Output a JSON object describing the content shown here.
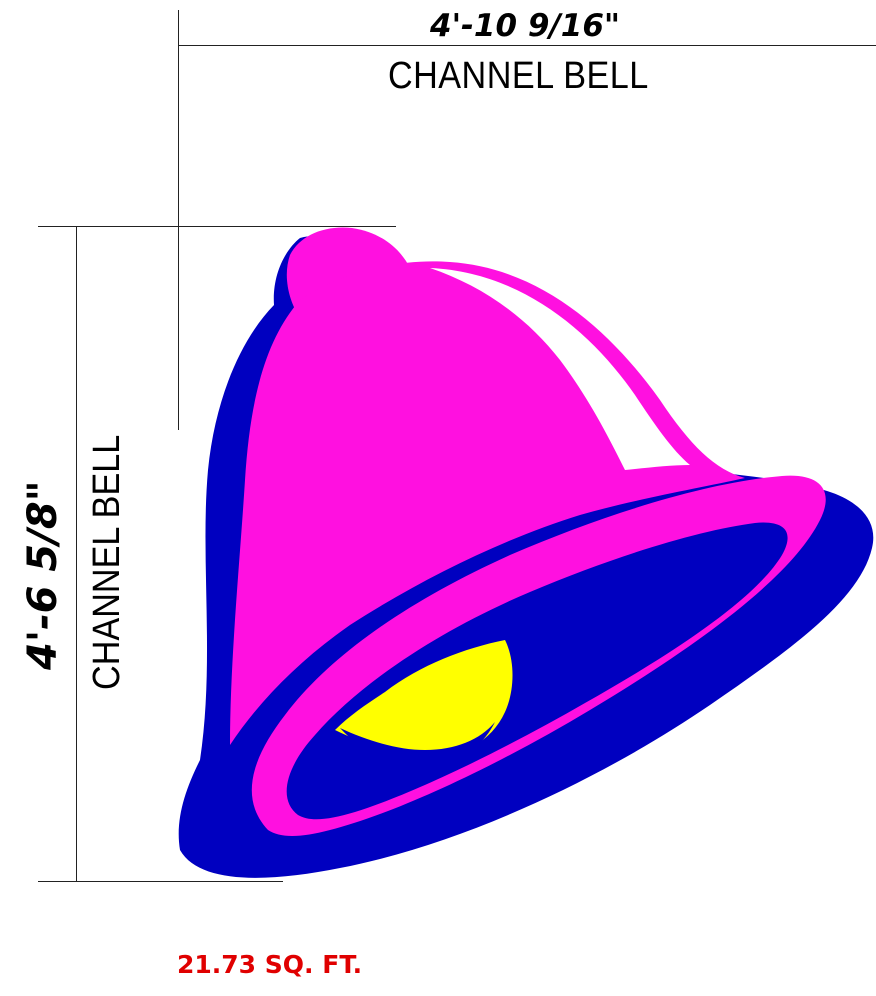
{
  "dimensions": {
    "width_value": "4'-10 9/16\"",
    "width_label": "CHANNEL BELL",
    "height_value": "4'-6 5/8\"",
    "height_label": "CHANNEL BELL"
  },
  "area": {
    "text": "21.73 SQ. FT.",
    "color": "#e00000"
  },
  "colors": {
    "bell_pink": "#ff10e0",
    "bell_blue": "#0000c0",
    "clapper_yellow": "#ffff00",
    "highlight_white": "#ffffff",
    "dimension_line": "#222222"
  }
}
